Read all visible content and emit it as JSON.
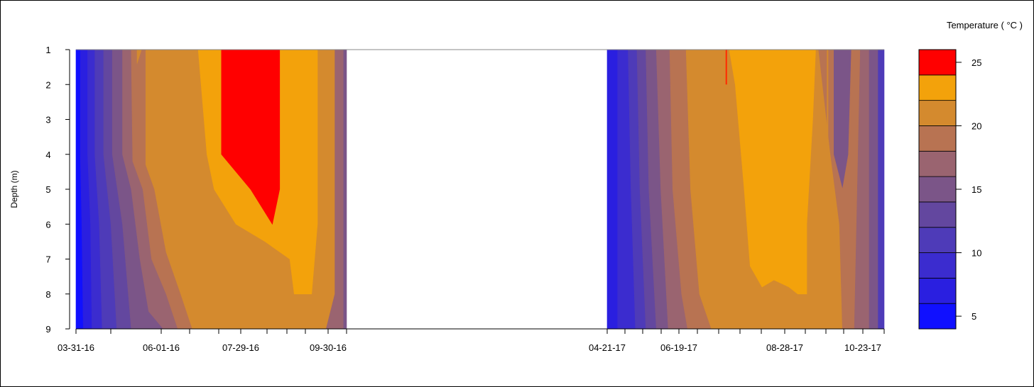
{
  "chart_data": {
    "type": "heatmap",
    "title": "",
    "xlabel": "",
    "ylabel": "Depth (m)",
    "legend_title": "Temperature ( °C )",
    "y_ticks": [
      "1",
      "2",
      "3",
      "4",
      "5",
      "6",
      "7",
      "8",
      "9"
    ],
    "ylim": [
      1,
      9
    ],
    "x_tick_labels": [
      "03-31-16",
      "06-01-16",
      "07-29-16",
      "09-30-16",
      "04-21-17",
      "06-19-17",
      "08-28-17",
      "10-23-17"
    ],
    "x_range": [
      "03-31-16",
      "10-23-17"
    ],
    "no_data_period": [
      "09-30-16",
      "04-21-17"
    ],
    "color_levels": [
      {
        "from": 4,
        "to": 6,
        "color": "#1010ff"
      },
      {
        "from": 6,
        "to": 8,
        "color": "#2a1fe0"
      },
      {
        "from": 8,
        "to": 10,
        "color": "#3b2ccf"
      },
      {
        "from": 10,
        "to": 12,
        "color": "#4e3bb8"
      },
      {
        "from": 12,
        "to": 14,
        "color": "#63479f"
      },
      {
        "from": 14,
        "to": 16,
        "color": "#7b5588"
      },
      {
        "from": 16,
        "to": 18,
        "color": "#9a6470"
      },
      {
        "from": 18,
        "to": 20,
        "color": "#b87352"
      },
      {
        "from": 20,
        "to": 22,
        "color": "#d48a2e"
      },
      {
        "from": 22,
        "to": 24,
        "color": "#f3a20b"
      },
      {
        "from": 24,
        "to": 26,
        "color": "#ff0000"
      }
    ],
    "legend_ticks": [
      "5",
      "10",
      "15",
      "20",
      "25"
    ],
    "segments": [
      {
        "name": "2016",
        "start": "03-31-16",
        "end": "09-30-16",
        "base_color": "#7b5588",
        "regions": [
          {
            "color": "#1010ff",
            "boundary": [
              [
                0,
                1
              ],
              [
                3,
                1
              ],
              [
                3,
                4
              ],
              [
                4,
                6
              ],
              [
                5,
                9
              ],
              [
                0,
                9
              ]
            ]
          },
          {
            "color": "#2a1fe0",
            "boundary": [
              [
                3,
                1
              ],
              [
                8,
                1
              ],
              [
                8,
                4
              ],
              [
                10,
                6
              ],
              [
                11,
                9
              ],
              [
                5,
                9
              ],
              [
                4,
                6
              ],
              [
                3,
                4
              ]
            ]
          },
          {
            "color": "#3b2ccf",
            "boundary": [
              [
                8,
                1
              ],
              [
                13,
                1
              ],
              [
                13,
                4
              ],
              [
                16,
                6
              ],
              [
                18,
                9
              ],
              [
                11,
                9
              ],
              [
                10,
                6
              ],
              [
                8,
                4
              ]
            ]
          },
          {
            "color": "#4e3bb8",
            "boundary": [
              [
                13,
                1
              ],
              [
                19,
                1
              ],
              [
                19,
                4
              ],
              [
                24,
                6
              ],
              [
                28,
                9
              ],
              [
                18,
                9
              ],
              [
                16,
                6
              ],
              [
                13,
                4
              ]
            ]
          },
          {
            "color": "#63479f",
            "boundary": [
              [
                19,
                1
              ],
              [
                25,
                1
              ],
              [
                25,
                4
              ],
              [
                32,
                6
              ],
              [
                36,
                8
              ],
              [
                38,
                9
              ],
              [
                28,
                9
              ],
              [
                24,
                6
              ],
              [
                19,
                4
              ]
            ]
          },
          {
            "color": "#7b5588",
            "boundary": [
              [
                25,
                1
              ],
              [
                32,
                1
              ],
              [
                32,
                4
              ],
              [
                38,
                5
              ],
              [
                44,
                7
              ],
              [
                50,
                8.5
              ],
              [
                60,
                9
              ],
              [
                38,
                9
              ],
              [
                36,
                8
              ],
              [
                32,
                6
              ],
              [
                25,
                4
              ]
            ]
          },
          {
            "color": "#9a6470",
            "boundary": [
              [
                32,
                1
              ],
              [
                38,
                1
              ],
              [
                39,
                4.2
              ],
              [
                46,
                5
              ],
              [
                52,
                7
              ],
              [
                62,
                8
              ],
              [
                70,
                9
              ],
              [
                60,
                9
              ],
              [
                50,
                8.5
              ],
              [
                44,
                7
              ],
              [
                38,
                5
              ],
              [
                32,
                4
              ]
            ]
          },
          {
            "color": "#b87352",
            "boundary": [
              [
                38,
                1
              ],
              [
                42,
                1
              ],
              [
                42,
                1.4
              ],
              [
                45,
                1
              ],
              [
                48,
                1
              ],
              [
                48,
                4.3
              ],
              [
                54,
                5
              ],
              [
                62,
                6.8
              ],
              [
                72,
                8
              ],
              [
                80,
                9
              ],
              [
                70,
                9
              ],
              [
                62,
                8
              ],
              [
                52,
                7
              ],
              [
                46,
                5
              ],
              [
                39,
                4.2
              ]
            ]
          },
          {
            "color": "#d48a2e",
            "boundary": [
              [
                45,
                1
              ],
              [
                162,
                1
              ],
              [
                170,
                1
              ],
              [
                178,
                1
              ],
              [
                178,
                8
              ],
              [
                172,
                9
              ],
              [
                80,
                9
              ],
              [
                72,
                8
              ],
              [
                62,
                6.8
              ],
              [
                54,
                5
              ],
              [
                48,
                4.3
              ],
              [
                48,
                1
              ],
              [
                45,
                1
              ],
              [
                42,
                1.4
              ],
              [
                42,
                1
              ]
            ]
          },
          {
            "color": "#f3a20b",
            "boundary": [
              [
                48,
                1
              ],
              [
                160,
                1
              ],
              [
                166,
                1
              ],
              [
                166,
                6
              ],
              [
                162,
                8
              ],
              [
                150,
                8
              ],
              [
                147,
                7
              ],
              [
                130,
                6.5
              ],
              [
                110,
                6
              ],
              [
                95,
                5
              ],
              [
                90,
                4
              ],
              [
                84,
                1
              ],
              [
                48,
                1
              ]
            ]
          },
          {
            "color": "#ff0000",
            "boundary": [
              [
                100,
                1
              ],
              [
                140,
                1
              ],
              [
                140,
                5
              ],
              [
                135,
                6
              ],
              [
                120,
                5
              ],
              [
                100,
                4
              ]
            ]
          },
          {
            "color": "#9a6470",
            "boundary": [
              [
                178,
                1
              ],
              [
                184,
                1
              ],
              [
                184,
                9
              ],
              [
                172,
                9
              ],
              [
                178,
                8
              ]
            ]
          },
          {
            "color": "#7b5588",
            "boundary": [
              [
                184,
                1
              ],
              [
                186,
                1
              ],
              [
                186,
                9
              ],
              [
                184,
                9
              ]
            ]
          }
        ]
      },
      {
        "name": "2017",
        "start": "04-21-17",
        "end": "10-23-17",
        "base_color": "#7b5588",
        "regions": [
          {
            "color": "#2a1fe0",
            "boundary": [
              [
                0,
                1
              ],
              [
                7,
                1
              ],
              [
                7,
                9
              ],
              [
                0,
                9
              ]
            ]
          },
          {
            "color": "#3b2ccf",
            "boundary": [
              [
                7,
                1
              ],
              [
                14,
                1
              ],
              [
                16,
                5
              ],
              [
                19,
                9
              ],
              [
                7,
                9
              ]
            ]
          },
          {
            "color": "#4e3bb8",
            "boundary": [
              [
                14,
                1
              ],
              [
                20,
                1
              ],
              [
                22,
                5
              ],
              [
                26,
                9
              ],
              [
                19,
                9
              ],
              [
                16,
                5
              ]
            ]
          },
          {
            "color": "#63479f",
            "boundary": [
              [
                20,
                1
              ],
              [
                26,
                1
              ],
              [
                28,
                5
              ],
              [
                33,
                9
              ],
              [
                26,
                9
              ],
              [
                22,
                5
              ]
            ]
          },
          {
            "color": "#7b5588",
            "boundary": [
              [
                26,
                1
              ],
              [
                33,
                1
              ],
              [
                36,
                5
              ],
              [
                41,
                9
              ],
              [
                33,
                9
              ],
              [
                28,
                5
              ]
            ]
          },
          {
            "color": "#9a6470",
            "boundary": [
              [
                33,
                1
              ],
              [
                42,
                1
              ],
              [
                44,
                5
              ],
              [
                50,
                8
              ],
              [
                54,
                9
              ],
              [
                41,
                9
              ],
              [
                36,
                5
              ]
            ]
          },
          {
            "color": "#b87352",
            "boundary": [
              [
                42,
                1
              ],
              [
                53,
                1
              ],
              [
                56,
                5
              ],
              [
                62,
                8
              ],
              [
                70,
                9
              ],
              [
                54,
                9
              ],
              [
                50,
                8
              ],
              [
                44,
                5
              ]
            ]
          },
          {
            "color": "#d48a2e",
            "boundary": [
              [
                53,
                1
              ],
              [
                142,
                1
              ],
              [
                150,
                1
              ],
              [
                150,
                4
              ],
              [
                156,
                6
              ],
              [
                158,
                9
              ],
              [
                70,
                9
              ],
              [
                62,
                8
              ],
              [
                56,
                5
              ]
            ]
          },
          {
            "color": "#f3a20b",
            "boundary": [
              [
                60,
                1
              ],
              [
                140,
                1
              ],
              [
                138,
                3
              ],
              [
                134,
                6
              ],
              [
                134,
                8
              ],
              [
                128,
                8
              ],
              [
                122,
                7.8
              ],
              [
                112,
                7.6
              ],
              [
                104,
                7.8
              ],
              [
                96,
                7.2
              ],
              [
                92,
                5
              ],
              [
                86,
                2
              ],
              [
                82,
                1
              ]
            ]
          },
          {
            "color": "#b87352",
            "boundary": [
              [
                142,
                1
              ],
              [
                152,
                1
              ],
              [
                152,
                4
              ],
              [
                158,
                5
              ],
              [
                162,
                4
              ],
              [
                164,
                1
              ],
              [
                170,
                1
              ],
              [
                166,
                9
              ],
              [
                158,
                9
              ],
              [
                156,
                6
              ],
              [
                150,
                4
              ]
            ]
          },
          {
            "color": "#9a6470",
            "boundary": [
              [
                170,
                1
              ],
              [
                176,
                1
              ],
              [
                176,
                9
              ],
              [
                166,
                9
              ]
            ]
          },
          {
            "color": "#7b5588",
            "boundary": [
              [
                176,
                1
              ],
              [
                182,
                1
              ],
              [
                182,
                9
              ],
              [
                176,
                9
              ]
            ]
          },
          {
            "color": "#4e3bb8",
            "boundary": [
              [
                182,
                1
              ],
              [
                186,
                1
              ],
              [
                186,
                9
              ],
              [
                182,
                9
              ]
            ]
          }
        ]
      }
    ],
    "annotations": [
      {
        "segment": "2017",
        "type": "thin-red-line",
        "x": 80,
        "y_from": 1,
        "y_to": 2
      },
      {
        "segment": "2017",
        "type": "thin-orange-line",
        "x": 148,
        "y_from": 1,
        "y_to": 3.5
      }
    ]
  }
}
